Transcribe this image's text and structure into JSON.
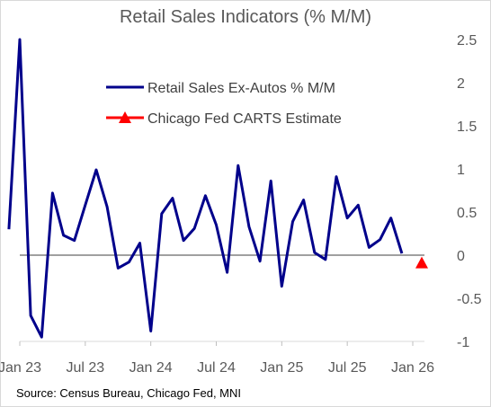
{
  "chart_data": {
    "type": "line",
    "title": "Retail Sales Indicators (% M/M)",
    "xlabel": "",
    "ylabel": "",
    "ylim": [
      -1,
      2.5
    ],
    "yticks": [
      2.5,
      2,
      1.5,
      1,
      0.5,
      0,
      -0.5,
      -1
    ],
    "xtick_labels": [
      "Jan 23",
      "Jul 23",
      "Jan 24",
      "Jul 24",
      "Jan 25",
      "Jul 25",
      "Jan 26"
    ],
    "xtick_positions": [
      "2023-01",
      "2023-07",
      "2024-01",
      "2024-07",
      "2025-01",
      "2025-07",
      "2026-01"
    ],
    "legend_position": "top-center",
    "series": [
      {
        "name": "Retail Sales Ex-Autos % M/M",
        "color": "#00008b",
        "marker": "none",
        "x": [
          "2022-12",
          "2023-01",
          "2023-02",
          "2023-03",
          "2023-04",
          "2023-05",
          "2023-06",
          "2023-07",
          "2023-08",
          "2023-09",
          "2023-10",
          "2023-11",
          "2023-12",
          "2024-01",
          "2024-02",
          "2024-03",
          "2024-04",
          "2024-05",
          "2024-06",
          "2024-07",
          "2024-08",
          "2024-09",
          "2024-10",
          "2024-11",
          "2024-12",
          "2025-01",
          "2025-02",
          "2025-03",
          "2025-04",
          "2025-05",
          "2025-06",
          "2025-07",
          "2025-08",
          "2025-09",
          "2025-10",
          "2025-11",
          "2025-12"
        ],
        "values": [
          0.3,
          2.5,
          -0.7,
          -0.95,
          0.72,
          0.23,
          0.17,
          0.58,
          0.99,
          0.56,
          -0.15,
          -0.08,
          0.14,
          -0.88,
          0.48,
          0.66,
          0.17,
          0.31,
          0.69,
          0.35,
          -0.2,
          1.04,
          0.33,
          -0.07,
          0.86,
          -0.36,
          0.39,
          0.64,
          0.03,
          -0.05,
          0.91,
          0.43,
          0.58,
          0.09,
          0.18,
          0.43,
          0.02
        ]
      },
      {
        "name": "Chicago Fed CARTS Estimate",
        "color": "#ff0000",
        "marker": "triangle",
        "x": [
          "2026-01"
        ],
        "values": [
          -0.09
        ]
      }
    ],
    "source": "Source: Census Bureau, Chicago Fed, MNI"
  }
}
